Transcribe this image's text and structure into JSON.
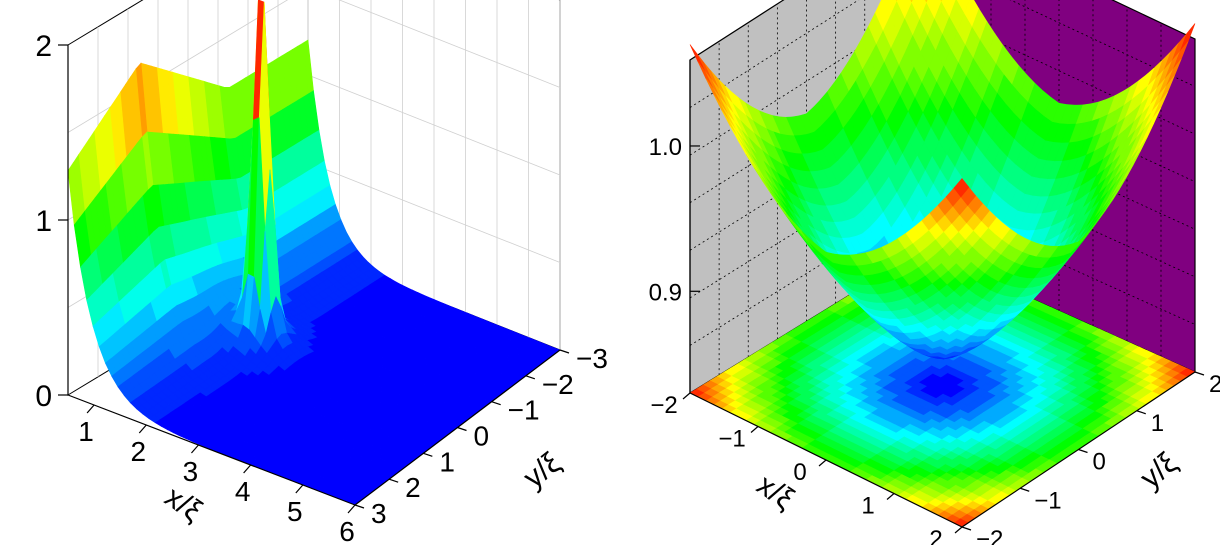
{
  "chart_data": [
    {
      "type": "surface3d",
      "xlabel": "x/ξ",
      "ylabel": "y/ξ",
      "zlabel": "",
      "x_ticks": [
        "1",
        "2",
        "3",
        "4",
        "5",
        "6"
      ],
      "y_ticks": [
        "−3",
        "−2",
        "−1",
        "0",
        "1",
        "2",
        "3"
      ],
      "z_ticks": [
        "0",
        "1",
        "2"
      ],
      "xlim": [
        0.5,
        6
      ],
      "ylim": [
        -3,
        3
      ],
      "zlim": [
        0,
        2
      ],
      "colormap": [
        "#0000ff",
        "#00ffff",
        "#00ff00",
        "#ffff00",
        "#ff0000"
      ],
      "features": {
        "edge_value_at_x0": 1.2,
        "edge_peak_value": 1.65,
        "spike_location": {
          "x": 2.0,
          "y": 0.0
        },
        "spike_height": 2.0,
        "background_value": 0.0
      },
      "grid": true
    },
    {
      "type": "surface3d",
      "xlabel": "x/ξ",
      "ylabel": "y/ξ",
      "zlabel": "",
      "x_ticks": [
        "−2",
        "−1",
        "0",
        "1",
        "2"
      ],
      "y_ticks": [
        "−2",
        "−1",
        "0",
        "1",
        "2"
      ],
      "z_ticks": [
        "0.9",
        "1.0"
      ],
      "xlim": [
        -2,
        2
      ],
      "ylim": [
        -2,
        2
      ],
      "zlim": [
        0.83,
        1.05
      ],
      "colormap": [
        "#0000ff",
        "#00ffff",
        "#00ff00",
        "#ffff00",
        "#ff0000"
      ],
      "features": {
        "minimum_value": 0.85,
        "minimum_location": {
          "x": 0,
          "y": 0
        },
        "corner_value": 1.05,
        "projected_contour_on_floor": true,
        "back_wall_left_color": "#c0c0c0",
        "back_wall_right_color": "#800080"
      },
      "grid": true
    }
  ]
}
